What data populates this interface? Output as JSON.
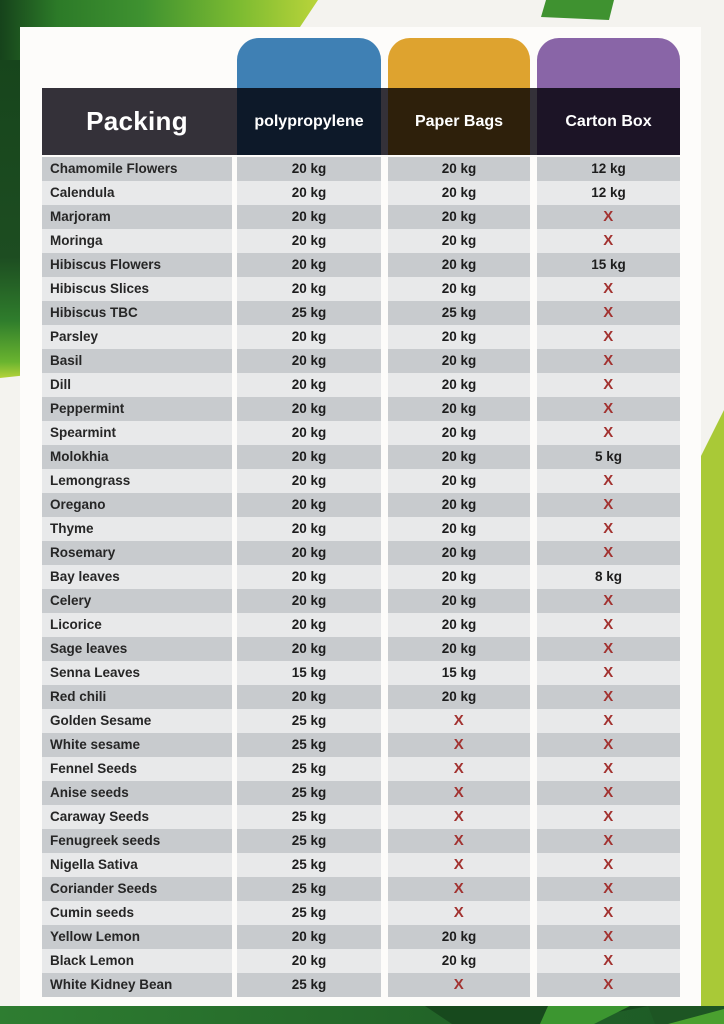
{
  "header": {
    "packing_label": "Packing",
    "columns": [
      {
        "id": "polypropylene",
        "label": "polypropylene",
        "color": "#3f80b4"
      },
      {
        "id": "paper_bags",
        "label": "Paper Bags",
        "color": "#dea32f"
      },
      {
        "id": "carton_box",
        "label": "Carton Box",
        "color": "#8965a7"
      }
    ]
  },
  "table": {
    "not_available_symbol": "X",
    "rows": [
      {
        "name": "Chamomile Flowers",
        "polypropylene": "20 kg",
        "paper_bags": "20 kg",
        "carton_box": "12 kg"
      },
      {
        "name": "Calendula",
        "polypropylene": "20 kg",
        "paper_bags": "20 kg",
        "carton_box": "12 kg"
      },
      {
        "name": "Marjoram",
        "polypropylene": "20 kg",
        "paper_bags": "20 kg",
        "carton_box": "X"
      },
      {
        "name": "Moringa",
        "polypropylene": "20 kg",
        "paper_bags": "20 kg",
        "carton_box": "X"
      },
      {
        "name": "Hibiscus Flowers",
        "polypropylene": "20 kg",
        "paper_bags": "20 kg",
        "carton_box": "15 kg"
      },
      {
        "name": "Hibiscus Slices",
        "polypropylene": "20 kg",
        "paper_bags": "20 kg",
        "carton_box": "X"
      },
      {
        "name": "Hibiscus TBC",
        "polypropylene": "25 kg",
        "paper_bags": "25 kg",
        "carton_box": "X"
      },
      {
        "name": "Parsley",
        "polypropylene": "20 kg",
        "paper_bags": "20 kg",
        "carton_box": "X"
      },
      {
        "name": "Basil",
        "polypropylene": "20 kg",
        "paper_bags": "20 kg",
        "carton_box": "X"
      },
      {
        "name": "Dill",
        "polypropylene": "20 kg",
        "paper_bags": "20 kg",
        "carton_box": "X"
      },
      {
        "name": "Peppermint",
        "polypropylene": "20 kg",
        "paper_bags": "20 kg",
        "carton_box": "X"
      },
      {
        "name": "Spearmint",
        "polypropylene": "20 kg",
        "paper_bags": "20 kg",
        "carton_box": "X"
      },
      {
        "name": "Molokhia",
        "polypropylene": "20 kg",
        "paper_bags": "20 kg",
        "carton_box": "5 kg"
      },
      {
        "name": "Lemongrass",
        "polypropylene": "20 kg",
        "paper_bags": "20 kg",
        "carton_box": "X"
      },
      {
        "name": "Oregano",
        "polypropylene": "20 kg",
        "paper_bags": "20 kg",
        "carton_box": "X"
      },
      {
        "name": "Thyme",
        "polypropylene": "20 kg",
        "paper_bags": "20 kg",
        "carton_box": "X"
      },
      {
        "name": "Rosemary",
        "polypropylene": "20 kg",
        "paper_bags": "20 kg",
        "carton_box": "X"
      },
      {
        "name": "Bay leaves",
        "polypropylene": "20 kg",
        "paper_bags": "20 kg",
        "carton_box": "8 kg"
      },
      {
        "name": "Celery",
        "polypropylene": "20 kg",
        "paper_bags": "20 kg",
        "carton_box": "X"
      },
      {
        "name": "Licorice",
        "polypropylene": "20 kg",
        "paper_bags": "20 kg",
        "carton_box": "X"
      },
      {
        "name": "Sage leaves",
        "polypropylene": "20 kg",
        "paper_bags": "20 kg",
        "carton_box": "X"
      },
      {
        "name": "Senna Leaves",
        "polypropylene": "15 kg",
        "paper_bags": "15 kg",
        "carton_box": "X"
      },
      {
        "name": "Red chili",
        "polypropylene": "20 kg",
        "paper_bags": "20 kg",
        "carton_box": "X"
      },
      {
        "name": "Golden Sesame",
        "polypropylene": "25 kg",
        "paper_bags": "X",
        "carton_box": "X"
      },
      {
        "name": "White sesame",
        "polypropylene": "25 kg",
        "paper_bags": "X",
        "carton_box": "X"
      },
      {
        "name": "Fennel Seeds",
        "polypropylene": "25 kg",
        "paper_bags": "X",
        "carton_box": "X"
      },
      {
        "name": "Anise seeds",
        "polypropylene": "25 kg",
        "paper_bags": "X",
        "carton_box": "X"
      },
      {
        "name": "Caraway Seeds",
        "polypropylene": "25 kg",
        "paper_bags": "X",
        "carton_box": "X"
      },
      {
        "name": "Fenugreek seeds",
        "polypropylene": "25 kg",
        "paper_bags": "X",
        "carton_box": "X"
      },
      {
        "name": "Nigella Sativa",
        "polypropylene": "25 kg",
        "paper_bags": "X",
        "carton_box": "X"
      },
      {
        "name": "Coriander Seeds",
        "polypropylene": "25 kg",
        "paper_bags": "X",
        "carton_box": "X"
      },
      {
        "name": "Cumin seeds",
        "polypropylene": "25 kg",
        "paper_bags": "X",
        "carton_box": "X"
      },
      {
        "name": "Yellow Lemon",
        "polypropylene": "20 kg",
        "paper_bags": "20 kg",
        "carton_box": "X"
      },
      {
        "name": "Black Lemon",
        "polypropylene": "20 kg",
        "paper_bags": "20 kg",
        "carton_box": "X"
      },
      {
        "name": "White Kidney Bean",
        "polypropylene": "25 kg",
        "paper_bags": "X",
        "carton_box": "X"
      }
    ]
  },
  "colors": {
    "header_band": "#343139",
    "row_odd": "#c8cbce",
    "row_even": "#e8e9ea",
    "cross_red": "#a23230",
    "page_bg": "#fdfcfa",
    "canvas_bg": "#f4f3ef",
    "green_dark": "#17451c",
    "green_mid": "#2f7d2c",
    "green_bright": "#3f9230",
    "green_lime": "#b5d33a"
  }
}
